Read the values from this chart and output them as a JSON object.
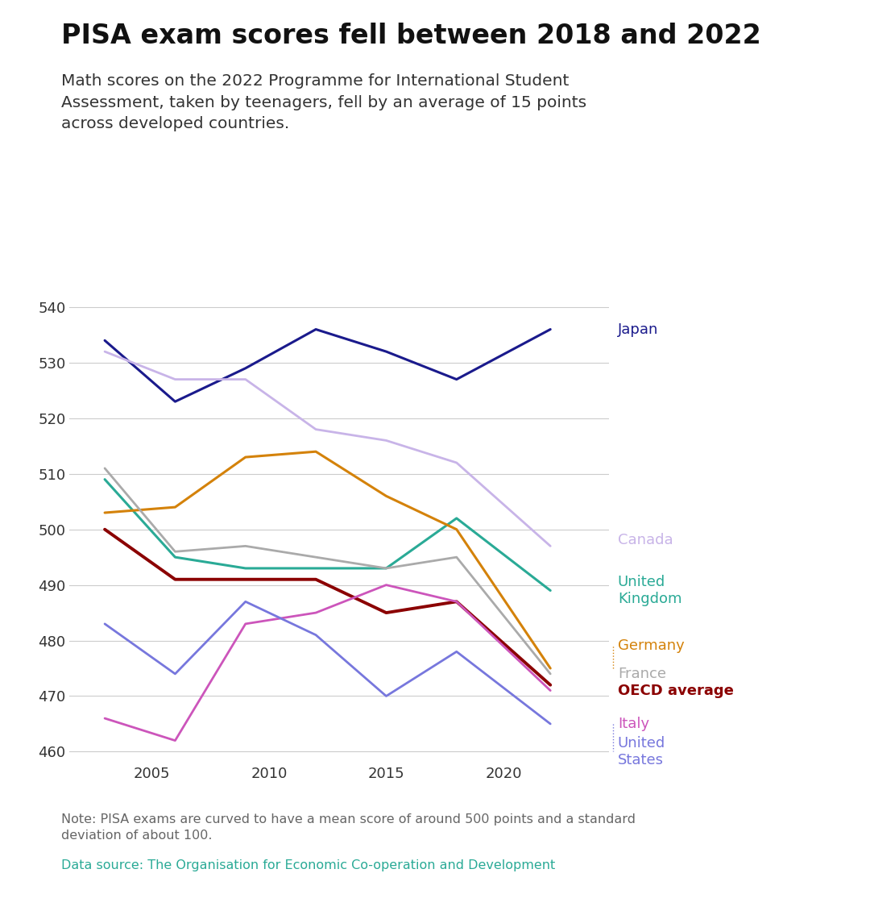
{
  "title": "PISA exam scores fell between 2018 and 2022",
  "subtitle": "Math scores on the 2022 Programme for International Student\nAssessment, taken by teenagers, fell by an average of 15 points\nacross developed countries.",
  "note": "Note: PISA exams are curved to have a mean score of around 500 points and a standard\ndeviation of about 100.",
  "source": "Data source: The Organisation for Economic Co-operation and Development",
  "years": [
    2003,
    2006,
    2009,
    2012,
    2015,
    2018,
    2022
  ],
  "series": {
    "Japan": {
      "values": [
        534,
        523,
        529,
        536,
        532,
        527,
        536
      ],
      "color": "#1a1a8c",
      "linewidth": 2.2,
      "linestyle": "solid"
    },
    "Canada": {
      "values": [
        532,
        527,
        527,
        518,
        516,
        512,
        497
      ],
      "color": "#c8b4e8",
      "linewidth": 2.0,
      "linestyle": "solid"
    },
    "United\nKingdom": {
      "values": [
        509,
        495,
        493,
        493,
        493,
        502,
        489
      ],
      "color": "#2aaa96",
      "linewidth": 2.2,
      "linestyle": "solid"
    },
    "Germany": {
      "values": [
        503,
        504,
        513,
        514,
        506,
        500,
        475
      ],
      "color": "#d4820a",
      "linewidth": 2.2,
      "linestyle": "solid"
    },
    "France": {
      "values": [
        511,
        496,
        497,
        495,
        493,
        495,
        474
      ],
      "color": "#aaaaaa",
      "linewidth": 2.0,
      "linestyle": "solid"
    },
    "OECD average": {
      "values": [
        500,
        491,
        491,
        491,
        485,
        487,
        472
      ],
      "color": "#8b0000",
      "linewidth": 2.8,
      "linestyle": "solid"
    },
    "Italy": {
      "values": [
        466,
        462,
        483,
        485,
        490,
        487,
        471
      ],
      "color": "#cc55bb",
      "linewidth": 2.0,
      "linestyle": "solid"
    },
    "United\nStates": {
      "values": [
        483,
        474,
        487,
        481,
        470,
        478,
        465
      ],
      "color": "#7777dd",
      "linewidth": 2.0,
      "linestyle": "solid"
    }
  },
  "ylim": [
    458,
    544
  ],
  "yticks": [
    460,
    470,
    480,
    490,
    500,
    510,
    520,
    530,
    540
  ],
  "background_color": "#ffffff",
  "label_y_adjusted": {
    "Japan": 536,
    "Canada": 498,
    "United\nKingdom": 489,
    "Germany": 479,
    "France": 474,
    "OECD average": 471,
    "Italy": 465,
    "United\nStates": 460
  },
  "label_fontweights": {
    "Japan": "normal",
    "Canada": "normal",
    "United\nKingdom": "normal",
    "Germany": "normal",
    "France": "normal",
    "OECD average": "bold",
    "Italy": "normal",
    "United\nStates": "normal"
  },
  "label_fontsizes": {
    "Japan": 13,
    "Canada": 13,
    "United\nKingdom": 13,
    "Germany": 13,
    "France": 13,
    "OECD average": 13,
    "Italy": 13,
    "United\nStates": 13
  }
}
